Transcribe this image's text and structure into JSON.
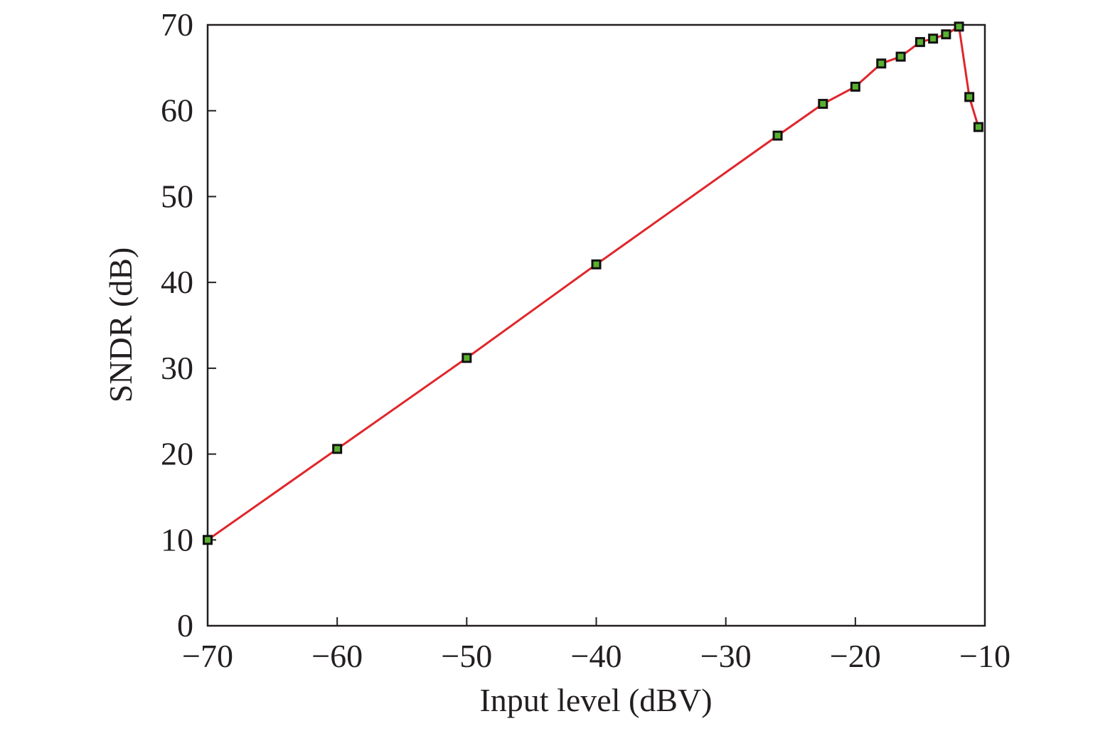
{
  "chart_data": {
    "type": "line",
    "title": "",
    "xlabel": "Input level (dBV)",
    "ylabel": "SNDR (dB)",
    "xlim": [
      -70,
      -10
    ],
    "ylim": [
      0,
      70
    ],
    "x_ticks": [
      -70,
      -60,
      -50,
      -40,
      -30,
      -20,
      -10
    ],
    "y_ticks": [
      0,
      10,
      20,
      30,
      40,
      50,
      60,
      70
    ],
    "x_tick_labels": [
      "−70",
      "−60",
      "−50",
      "−40",
      "−30",
      "−20",
      "−10"
    ],
    "y_tick_labels": [
      "0",
      "10",
      "20",
      "30",
      "40",
      "50",
      "60",
      "70"
    ],
    "grid": false,
    "legend": "none",
    "colors": {
      "line": "#e0262b",
      "marker_fill": "#59b030",
      "marker_edge": "#111111",
      "axes": "#231f20"
    },
    "series": [
      {
        "x": [
          -70,
          -60,
          -50,
          -40,
          -26,
          -22.5,
          -20,
          -18,
          -16.5,
          -15,
          -14,
          -13,
          -12,
          -11.2,
          -10.5
        ],
        "y": [
          10,
          20.6,
          31.2,
          42.1,
          57.1,
          60.8,
          62.8,
          65.5,
          66.3,
          68,
          68.4,
          68.9,
          69.8,
          61.6,
          58.1
        ]
      }
    ]
  }
}
